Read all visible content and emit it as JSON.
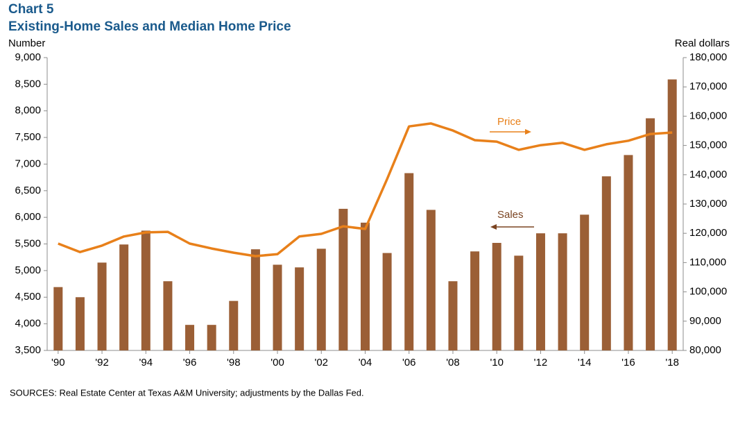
{
  "chart_data": {
    "type": "bar_line",
    "title": "Chart 5",
    "subtitle": "Existing-Home Sales and Median Home Price",
    "y_label": "Number",
    "y2_label": "Real dollars",
    "source": "SOURCES:  Real Estate Center at Texas A&M University;  adjustments by the Dallas Fed.",
    "annotations": [
      "Price",
      "Sales"
    ],
    "categories": [
      "'90",
      null,
      "'92",
      null,
      "'94",
      null,
      "'96",
      null,
      "'98",
      null,
      "'00",
      null,
      "'02",
      null,
      "'04",
      null,
      "'06",
      null,
      "'08",
      null,
      "'10",
      null,
      "'12",
      null,
      "'14",
      null,
      "'16",
      null,
      "'18"
    ],
    "series": [
      {
        "name": "Sales",
        "type": "bar",
        "color": "#9b5f36",
        "values": [
          4690,
          4500,
          5150,
          5490,
          5750,
          4800,
          3980,
          3980,
          4430,
          5400,
          5110,
          5060,
          5410,
          6160,
          5900,
          5330,
          6830,
          6140,
          4800,
          5360,
          5520,
          5280,
          5700,
          5700,
          6050,
          6770,
          7170,
          7860,
          8590
        ]
      },
      {
        "name": "Price",
        "type": "line",
        "axis": "y2",
        "color": "#e8801a",
        "values": [
          116500,
          113600,
          115800,
          118900,
          120300,
          120500,
          116500,
          114800,
          113400,
          112200,
          112900,
          118900,
          119800,
          122400,
          121500,
          138500,
          156500,
          157500,
          155100,
          151800,
          151300,
          148500,
          150100,
          150900,
          148500,
          150400,
          151600,
          153900,
          154400
        ]
      }
    ],
    "ylim": [
      3500,
      9000
    ],
    "yticks": [
      {
        "value": 3500,
        "label": "3,500"
      },
      {
        "value": 4000,
        "label": "4,000"
      },
      {
        "value": 4500,
        "label": "4,500"
      },
      {
        "value": 5000,
        "label": "5,000"
      },
      {
        "value": 5500,
        "label": "5,500"
      },
      {
        "value": 6000,
        "label": "6,000"
      },
      {
        "value": 6500,
        "label": "6,500"
      },
      {
        "value": 7000,
        "label": "7,000"
      },
      {
        "value": 7500,
        "label": "7,500"
      },
      {
        "value": 8000,
        "label": "8,000"
      },
      {
        "value": 8500,
        "label": "8,500"
      },
      {
        "value": 9000,
        "label": "9,000"
      }
    ],
    "y2lim": [
      80000,
      180000
    ],
    "y2ticks": [
      {
        "value": 80000,
        "label": "80,000"
      },
      {
        "value": 90000,
        "label": "90,000"
      },
      {
        "value": 100000,
        "label": "100,000"
      },
      {
        "value": 110000,
        "label": "110,000"
      },
      {
        "value": 120000,
        "label": "120,000"
      },
      {
        "value": 130000,
        "label": "130,000"
      },
      {
        "value": 140000,
        "label": "140,000"
      },
      {
        "value": 150000,
        "label": "150,000"
      },
      {
        "value": 160000,
        "label": "160,000"
      },
      {
        "value": 170000,
        "label": "170,000"
      },
      {
        "value": 180000,
        "label": "180,000"
      }
    ],
    "grid": false
  }
}
